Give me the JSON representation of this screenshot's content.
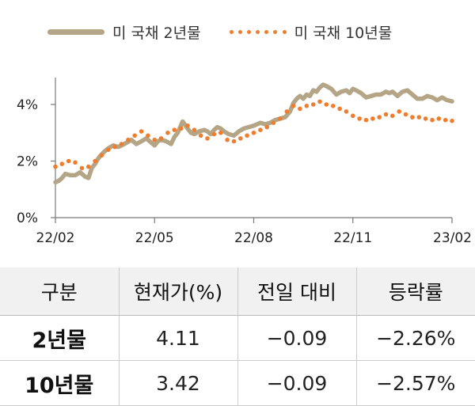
{
  "legend": {
    "series1": "미 국채 2년물",
    "series2": "미 국채 10년물"
  },
  "colors": {
    "series1": "#b5a587",
    "series2": "#ee7d2e"
  },
  "chart_data": {
    "type": "line",
    "y_ticks": [
      "0%",
      "2%",
      "4%"
    ],
    "x_ticks": [
      "22/02",
      "22/05",
      "22/08",
      "22/11",
      "23/02"
    ],
    "ylim": [
      0,
      5
    ],
    "series": [
      {
        "name": "미 국채 2년물",
        "style": "solid",
        "x": [
          0,
          0.1,
          0.2,
          0.3,
          0.45,
          0.6,
          0.75,
          0.9,
          1.0,
          1.1,
          1.2,
          1.3,
          1.45,
          1.6,
          1.75,
          1.9,
          2.0,
          2.15,
          2.3,
          2.45,
          2.6,
          2.75,
          2.9,
          3.0,
          3.1,
          3.2,
          3.35,
          3.5,
          3.6,
          3.7,
          3.85,
          4.0,
          4.1,
          4.2,
          4.35,
          4.5,
          4.6,
          4.7,
          4.8,
          4.9,
          5.0,
          5.1,
          5.25,
          5.4,
          5.55,
          5.7,
          5.85,
          6.0,
          6.1,
          6.2,
          6.35,
          6.5,
          6.65,
          6.8,
          6.95,
          7.1,
          7.2,
          7.3,
          7.4,
          7.5,
          7.6,
          7.7,
          7.8,
          7.9,
          8.0,
          8.1,
          8.2,
          8.35,
          8.5,
          8.65,
          8.8,
          8.9,
          9.0,
          9.1,
          9.25,
          9.4,
          9.55,
          9.7,
          9.85,
          10.0,
          10.1,
          10.2,
          10.35,
          10.5,
          10.65,
          10.8,
          10.95,
          11.1,
          11.25,
          11.4,
          11.55,
          11.7,
          11.85,
          12.0
        ],
        "values": [
          1.25,
          1.3,
          1.4,
          1.55,
          1.5,
          1.5,
          1.6,
          1.45,
          1.4,
          1.75,
          1.9,
          2.1,
          2.3,
          2.45,
          2.55,
          2.5,
          2.55,
          2.65,
          2.75,
          2.6,
          2.7,
          2.8,
          2.65,
          2.55,
          2.7,
          2.75,
          2.7,
          2.6,
          2.85,
          3.0,
          3.4,
          3.15,
          3.0,
          2.95,
          3.05,
          3.1,
          3.05,
          2.95,
          3.1,
          3.2,
          3.15,
          3.05,
          2.95,
          2.9,
          3.05,
          3.15,
          3.2,
          3.25,
          3.3,
          3.35,
          3.3,
          3.35,
          3.45,
          3.5,
          3.55,
          3.75,
          4.05,
          4.2,
          4.3,
          4.2,
          4.35,
          4.3,
          4.5,
          4.45,
          4.6,
          4.7,
          4.65,
          4.55,
          4.35,
          4.45,
          4.5,
          4.4,
          4.55,
          4.5,
          4.4,
          4.25,
          4.3,
          4.35,
          4.35,
          4.45,
          4.4,
          4.45,
          4.3,
          4.45,
          4.5,
          4.35,
          4.2,
          4.2,
          4.3,
          4.25,
          4.15,
          4.25,
          4.15,
          4.11
        ]
      },
      {
        "name": "미 국채 10년물",
        "style": "dotted",
        "x": [
          0,
          0.2,
          0.4,
          0.6,
          0.8,
          1.0,
          1.2,
          1.4,
          1.6,
          1.8,
          2.0,
          2.2,
          2.4,
          2.6,
          2.8,
          3.0,
          3.2,
          3.4,
          3.6,
          3.8,
          4.0,
          4.2,
          4.4,
          4.6,
          4.8,
          5.0,
          5.2,
          5.4,
          5.6,
          5.8,
          6.0,
          6.2,
          6.4,
          6.6,
          6.8,
          7.0,
          7.2,
          7.4,
          7.6,
          7.8,
          8.0,
          8.2,
          8.4,
          8.6,
          8.8,
          9.0,
          9.2,
          9.4,
          9.6,
          9.8,
          10.0,
          10.2,
          10.4,
          10.6,
          10.8,
          11.0,
          11.2,
          11.4,
          11.6,
          11.8,
          12.0
        ],
        "values": [
          1.8,
          1.9,
          2.0,
          1.95,
          1.75,
          1.8,
          2.0,
          2.2,
          2.4,
          2.5,
          2.6,
          2.75,
          2.9,
          3.05,
          2.9,
          2.75,
          2.8,
          3.0,
          3.1,
          3.15,
          3.25,
          3.1,
          2.9,
          2.8,
          2.95,
          3.0,
          2.75,
          2.7,
          2.8,
          2.9,
          3.0,
          3.1,
          3.2,
          3.35,
          3.5,
          3.75,
          3.95,
          3.85,
          3.95,
          4.0,
          4.1,
          4.0,
          3.95,
          3.85,
          3.75,
          3.6,
          3.5,
          3.45,
          3.5,
          3.55,
          3.65,
          3.6,
          3.75,
          3.65,
          3.55,
          3.55,
          3.5,
          3.45,
          3.5,
          3.45,
          3.42
        ]
      }
    ]
  },
  "table": {
    "headers": [
      "구분",
      "현재가(%)",
      "전일 대비",
      "등락률"
    ],
    "rows": [
      [
        "2년물",
        "4.11",
        "−0.09",
        "−2.26%"
      ],
      [
        "10년물",
        "3.42",
        "−0.09",
        "−2.57%"
      ]
    ]
  }
}
